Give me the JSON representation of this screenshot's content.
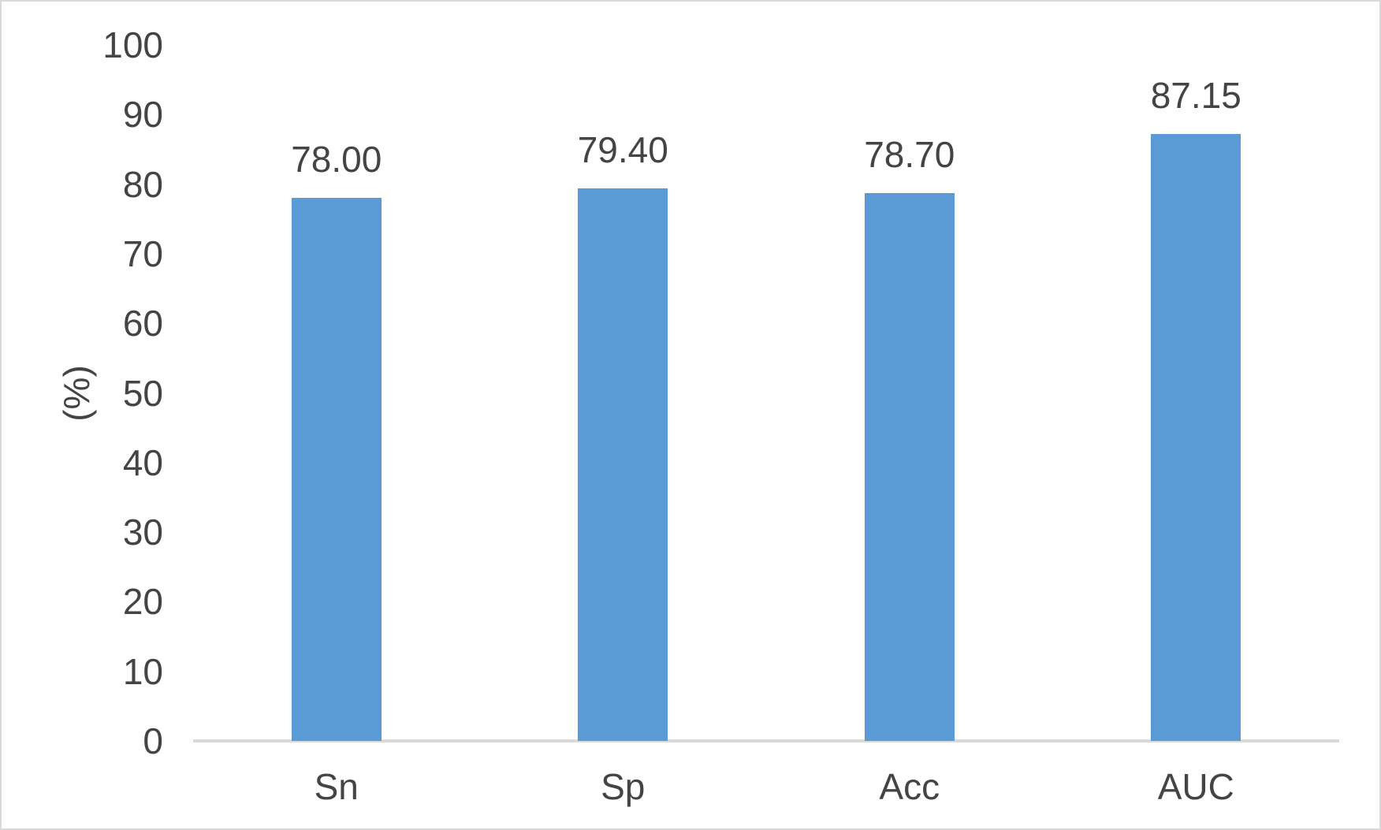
{
  "chart_data": {
    "type": "bar",
    "categories": [
      "Sn",
      "Sp",
      "Acc",
      "AUC"
    ],
    "values": [
      78.0,
      79.4,
      78.7,
      87.15
    ],
    "value_labels": [
      "78.00",
      "79.40",
      "78.70",
      "87.15"
    ],
    "title": "",
    "xlabel": "",
    "ylabel": "(%)",
    "ylim": [
      0,
      100
    ],
    "yticks": [
      0,
      10,
      20,
      30,
      40,
      50,
      60,
      70,
      80,
      90,
      100
    ],
    "grid": false,
    "legend": false,
    "layout_hints": {
      "legend_position": "none",
      "data_labels": "outside-end"
    },
    "colors": {
      "bar": "#5B9BD5",
      "text": "#444444",
      "axis_line": "#D9D9D9",
      "frame_border": "#D9D9D9",
      "background": "#FFFFFF"
    }
  }
}
